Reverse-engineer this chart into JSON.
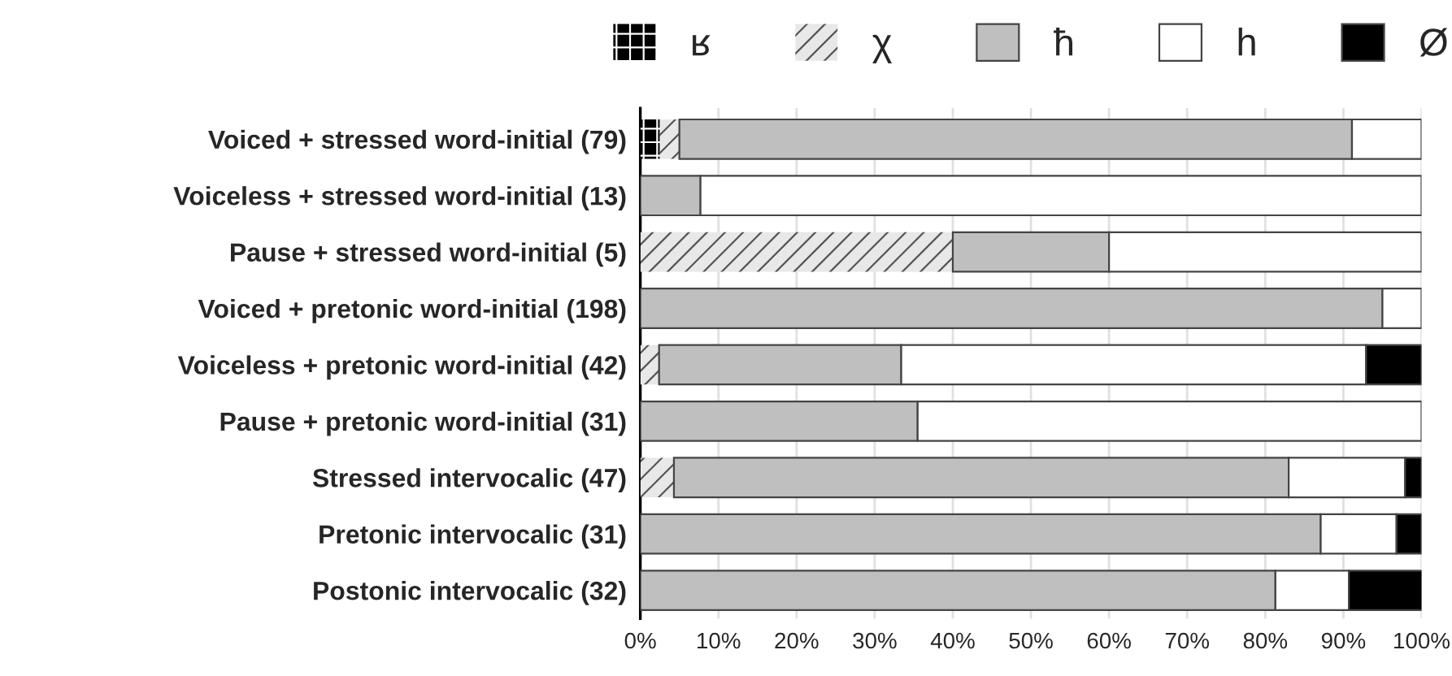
{
  "chart_data": {
    "type": "bar",
    "orientation": "horizontal",
    "stacked": true,
    "categories": [
      "Voiced + stressed word-initial (79)",
      "Voiceless + stressed word-initial (13)",
      "Pause + stressed word-initial (5)",
      "Voiced + pretonic word-initial (198)",
      "Voiceless + pretonic word-initial (42)",
      "Pause + pretonic word-initial (31)",
      "Stressed intervocalic (47)",
      "Pretonic intervocalic (31)",
      "Postonic intervocalic (32)"
    ],
    "series": [
      {
        "name": "ʁ",
        "color": "#000000",
        "values": [
          2.5,
          null,
          null,
          null,
          null,
          null,
          null,
          null,
          null
        ]
      },
      {
        "name": "χ",
        "color": "#e8e8e8",
        "values": [
          2.5,
          null,
          40,
          null,
          2.4,
          null,
          4.3,
          null,
          null
        ]
      },
      {
        "name": "ħ",
        "color": "#bfbfbf",
        "values": [
          86.1,
          7.7,
          20,
          95.0,
          31.0,
          35.5,
          78.7,
          87.1,
          81.3
        ]
      },
      {
        "name": "h",
        "color": "#ffffff",
        "values": [
          8.9,
          92.3,
          40,
          5.0,
          59.5,
          64.5,
          14.9,
          9.7,
          9.4
        ]
      },
      {
        "name": "Ø",
        "color": "#000000",
        "values": [
          null,
          null,
          null,
          null,
          7.1,
          null,
          2.1,
          3.2,
          9.4
        ]
      }
    ],
    "xlim": [
      0,
      100
    ],
    "xticks": [
      {
        "value": 0,
        "label": "0%"
      },
      {
        "value": 10,
        "label": "10%"
      },
      {
        "value": 20,
        "label": "20%"
      },
      {
        "value": 30,
        "label": "30%"
      },
      {
        "value": 40,
        "label": "40%"
      },
      {
        "value": 50,
        "label": "50%"
      },
      {
        "value": 60,
        "label": "60%"
      },
      {
        "value": 70,
        "label": "70%"
      },
      {
        "value": 80,
        "label": "80%"
      },
      {
        "value": 90,
        "label": "90%"
      },
      {
        "value": 100,
        "label": "100%"
      }
    ],
    "grid": "x",
    "legend": "top"
  }
}
